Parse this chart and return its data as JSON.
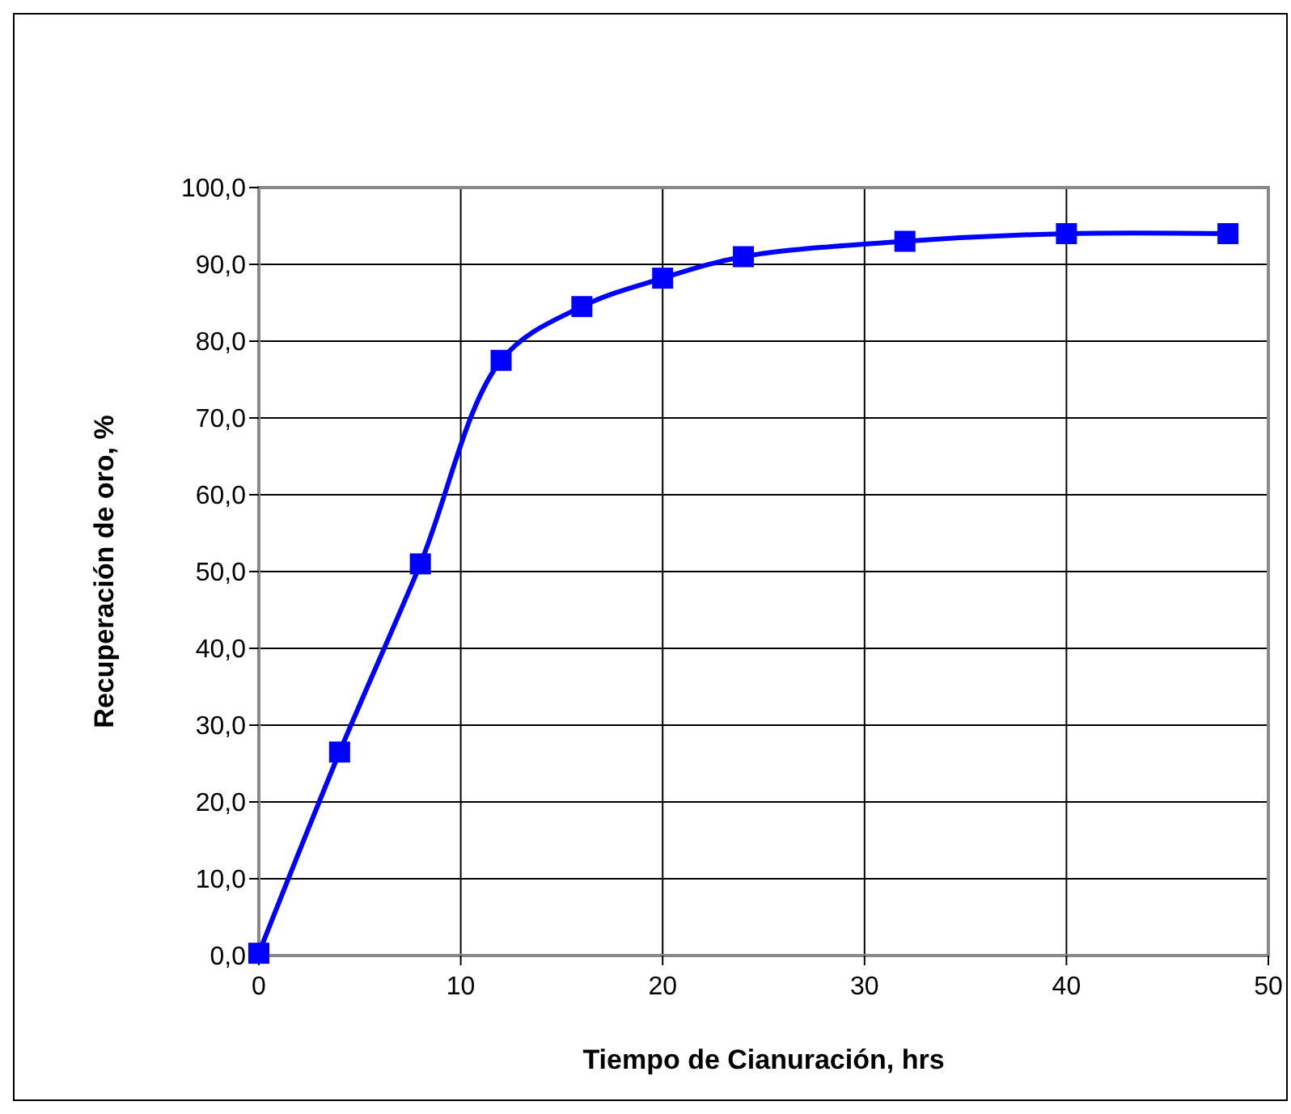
{
  "chart_data": {
    "type": "line",
    "xlabel": "Tiempo de Cianuración, hrs",
    "ylabel": "Recuperación de oro, %",
    "x": [
      0,
      4,
      8,
      12,
      16,
      20,
      24,
      32,
      40,
      48
    ],
    "series": [
      {
        "color": "#0000ff",
        "values": [
          0.3,
          26.5,
          51,
          77.5,
          84.5,
          88.2,
          91,
          93,
          94,
          94
        ]
      }
    ],
    "xlim": [
      0,
      50
    ],
    "xticks": [
      0,
      10,
      20,
      30,
      40,
      50
    ],
    "ylim": [
      0,
      100
    ],
    "yticks": [
      {
        "value": 0,
        "label": "0,0"
      },
      {
        "value": 10,
        "label": "10,0"
      },
      {
        "value": 20,
        "label": "20,0"
      },
      {
        "value": 30,
        "label": "30,0"
      },
      {
        "value": 40,
        "label": "40,0"
      },
      {
        "value": 50,
        "label": "50,0"
      },
      {
        "value": 60,
        "label": "60,0"
      },
      {
        "value": 70,
        "label": "70,0"
      },
      {
        "value": 80,
        "label": "80,0"
      },
      {
        "value": 90,
        "label": "90,0"
      },
      {
        "value": 100,
        "label": "100,0"
      }
    ],
    "grid": true,
    "marker": "square",
    "line_style": "solid"
  }
}
